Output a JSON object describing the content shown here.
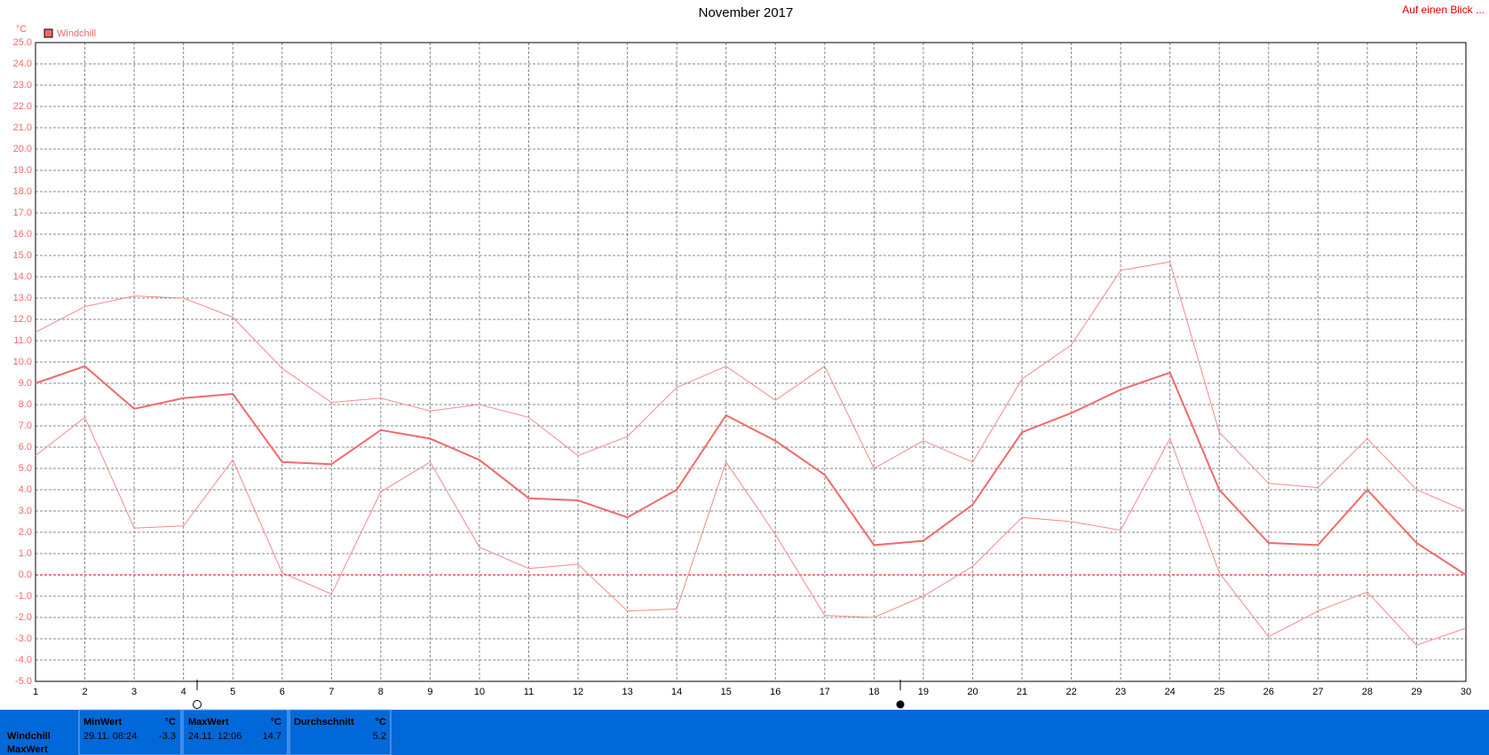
{
  "chart_data": {
    "type": "line",
    "title": "November 2017",
    "corner_link": "Auf einen Blick ...",
    "y_unit": "°C",
    "legend": "top-left",
    "grid": true,
    "xlim": [
      1,
      30
    ],
    "xticks": [
      1,
      2,
      3,
      4,
      5,
      6,
      7,
      8,
      9,
      10,
      11,
      12,
      13,
      14,
      15,
      16,
      17,
      18,
      19,
      20,
      21,
      22,
      23,
      24,
      25,
      26,
      27,
      28,
      29,
      30
    ],
    "ylim": [
      -5,
      25
    ],
    "yticks": [
      {
        "value": -5,
        "label": "-5.0"
      },
      {
        "value": -4,
        "label": "-4.0"
      },
      {
        "value": -3,
        "label": "-3.0"
      },
      {
        "value": -2,
        "label": "-2.0"
      },
      {
        "value": -1,
        "label": "-1.0"
      },
      {
        "value": 0,
        "label": "0.0"
      },
      {
        "value": 1,
        "label": "1.0"
      },
      {
        "value": 2,
        "label": "2.0"
      },
      {
        "value": 3,
        "label": "3.0"
      },
      {
        "value": 4,
        "label": "4.0"
      },
      {
        "value": 5,
        "label": "5.0"
      },
      {
        "value": 6,
        "label": "6.0"
      },
      {
        "value": 7,
        "label": "7.0"
      },
      {
        "value": 8,
        "label": "8.0"
      },
      {
        "value": 9,
        "label": "9.0"
      },
      {
        "value": 10,
        "label": "10.0"
      },
      {
        "value": 11,
        "label": "11.0"
      },
      {
        "value": 12,
        "label": "12.0"
      },
      {
        "value": 13,
        "label": "13.0"
      },
      {
        "value": 14,
        "label": "14.0"
      },
      {
        "value": 15,
        "label": "15.0"
      },
      {
        "value": 16,
        "label": "16.0"
      },
      {
        "value": 17,
        "label": "17.0"
      },
      {
        "value": 18,
        "label": "18.0"
      },
      {
        "value": 19,
        "label": "19.0"
      },
      {
        "value": 20,
        "label": "20.0"
      },
      {
        "value": 21,
        "label": "21.0"
      },
      {
        "value": 22,
        "label": "22.0"
      },
      {
        "value": 23,
        "label": "23.0"
      },
      {
        "value": 24,
        "label": "24.0"
      },
      {
        "value": 25,
        "label": "25.0"
      }
    ],
    "x": [
      1,
      2,
      3,
      4,
      5,
      6,
      7,
      8,
      9,
      10,
      11,
      12,
      13,
      14,
      15,
      16,
      17,
      18,
      19,
      20,
      21,
      22,
      23,
      24,
      25,
      26,
      27,
      28,
      29,
      30
    ],
    "series": [
      {
        "name": "Windchill",
        "color": "#f06a6a",
        "values": [
          9.0,
          9.8,
          7.8,
          8.3,
          8.5,
          5.3,
          5.2,
          6.8,
          6.4,
          5.4,
          3.6,
          3.5,
          2.7,
          4.0,
          7.5,
          6.3,
          4.7,
          1.4,
          1.6,
          3.3,
          6.7,
          7.6,
          8.7,
          9.5,
          4.0,
          1.5,
          1.4,
          4.0,
          1.5,
          0.0
        ]
      },
      {
        "color": "#f48a8a",
        "values": [
          11.4,
          12.6,
          13.1,
          13.0,
          12.1,
          9.7,
          8.1,
          8.3,
          7.7,
          8.0,
          7.4,
          5.6,
          6.5,
          8.8,
          9.8,
          8.2,
          9.8,
          5.0,
          6.3,
          5.3,
          9.2,
          10.8,
          14.3,
          14.7,
          6.7,
          4.3,
          4.1,
          6.4,
          4.0,
          3.0
        ]
      },
      {
        "color": "#f48a8a",
        "values": [
          5.6,
          7.4,
          2.2,
          2.3,
          5.4,
          0.1,
          -0.9,
          3.9,
          5.3,
          1.3,
          0.3,
          0.5,
          -1.7,
          -1.6,
          5.3,
          1.9,
          -1.9,
          -2.0,
          -1.0,
          0.4,
          2.7,
          2.5,
          2.1,
          6.4,
          0.1,
          -2.9,
          -1.7,
          -0.8,
          -3.3,
          -2.5
        ]
      }
    ],
    "summary": {
      "row_labels": [
        "Windchill",
        "MaxWert"
      ],
      "columns": [
        {
          "header": "MinWert",
          "unit": "°C",
          "when": "29.11.  08:24",
          "value": "-3.3"
        },
        {
          "header": "MaxWert",
          "unit": "°C",
          "when": "24.11.  12:06",
          "value": "14.7"
        },
        {
          "header": "Durchschnitt",
          "unit": "°C",
          "value": "5.2"
        }
      ]
    }
  }
}
